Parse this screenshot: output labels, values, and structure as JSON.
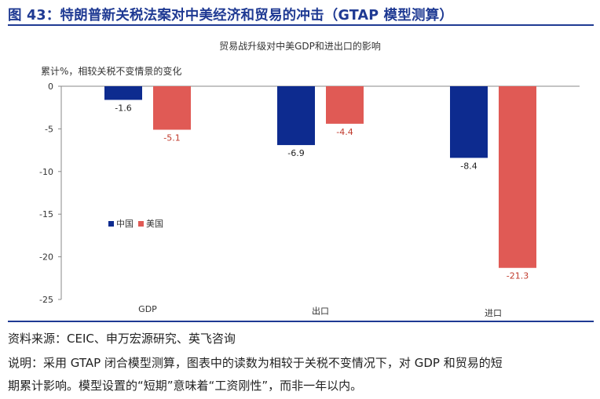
{
  "figure": {
    "title": "图 43：特朗普新关税法案对中美经济和贸易的冲击（GTAP 模型测算）"
  },
  "chart_data": {
    "type": "bar",
    "title": "贸易战升级对中美GDP和进出口的影响",
    "ylabel": "累计%，相较关税不变情景的变化",
    "categories": [
      "GDP",
      "出口",
      "进口"
    ],
    "series": [
      {
        "name": "中国",
        "color": "#0d2b8f",
        "values": [
          -1.6,
          -6.9,
          -8.4
        ]
      },
      {
        "name": "美国",
        "color": "#e05a55",
        "values": [
          -5.1,
          -4.4,
          -21.3
        ]
      }
    ],
    "ylim": [
      -25,
      0
    ],
    "yticks": [
      0,
      -5,
      -10,
      -15,
      -20,
      -25
    ],
    "legend_position": "left-middle",
    "grid": false
  },
  "footer": {
    "source": "资料来源：CEIC、申万宏源研究、英飞咨询",
    "note_line1": "说明：采用 GTAP 闭合模型测算，图表中的读数为相较于关税不变情况下，对 GDP 和贸易的短",
    "note_line2": "期累计影响。模型设置的“短期”意味着“工资刚性”，而非一年以内。"
  }
}
